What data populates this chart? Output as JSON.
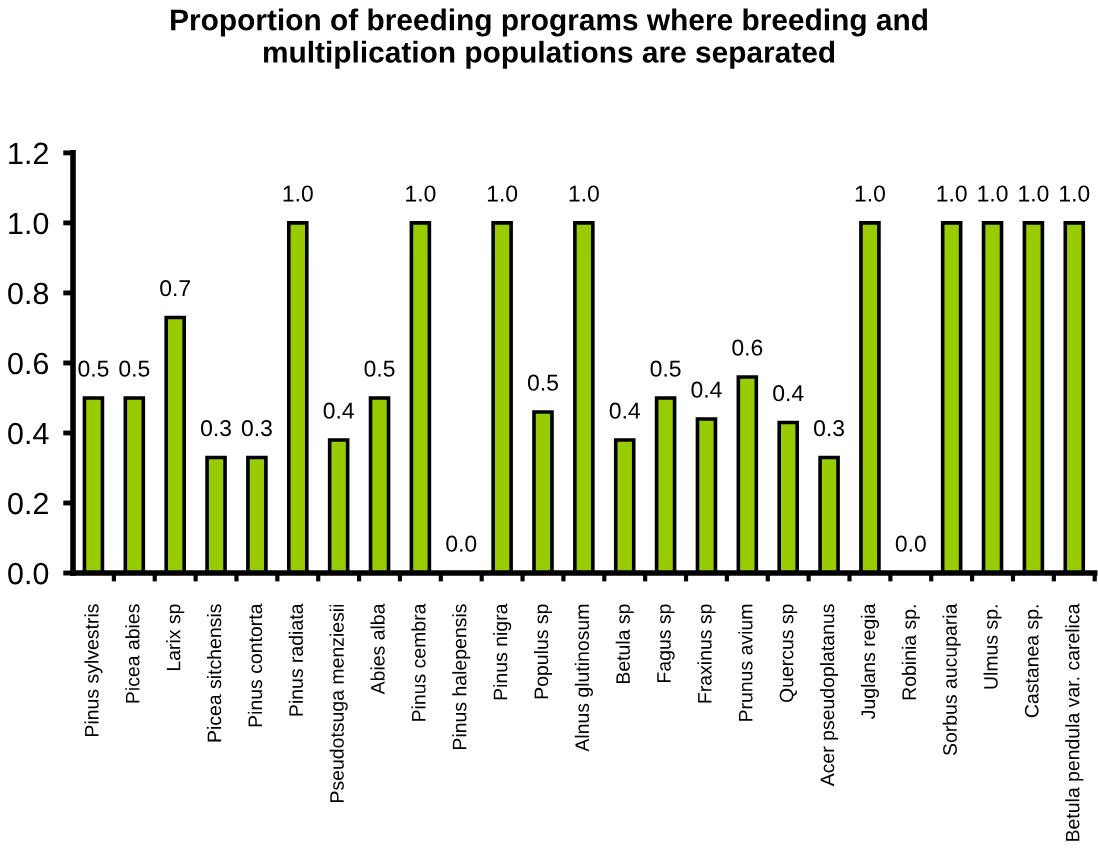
{
  "chart_data": {
    "type": "bar",
    "title": "Proportion of breeding programs where breeding and\nmultiplication populations are separated",
    "categories": [
      "Pinus sylvestris",
      "Picea abies",
      "Larix sp",
      "Picea sitchensis",
      "Pinus contorta",
      "Pinus radiata",
      "Pseudotsuga menziesii",
      "Abies alba",
      "Pinus cembra",
      "Pinus halepensis",
      "Pinus nigra",
      "Populus sp",
      "Alnus glutinosum",
      "Betula sp",
      "Fagus sp",
      "Fraxinus sp",
      "Prunus avium",
      "Quercus sp",
      "Acer pseudoplatanus",
      "Juglans regia",
      "Robinia sp.",
      "Sorbus aucuparia",
      "Ulmus sp.",
      "Castanea sp.",
      "Betula pendula var. carelica"
    ],
    "values": [
      0.5,
      0.5,
      0.73,
      0.33,
      0.33,
      1.0,
      0.38,
      0.5,
      1.0,
      0.0,
      1.0,
      0.46,
      1.0,
      0.38,
      0.5,
      0.44,
      0.56,
      0.43,
      0.33,
      1.0,
      0.0,
      1.0,
      1.0,
      1.0,
      1.0
    ],
    "value_labels": [
      "0.5",
      "0.5",
      "0.7",
      "0.3",
      "0.3",
      "1.0",
      "0.4",
      "0.5",
      "1.0",
      "0.0",
      "1.0",
      "0.5",
      "1.0",
      "0.4",
      "0.5",
      "0.4",
      "0.6",
      "0.4",
      "0.3",
      "1.0",
      "0.0",
      "1.0",
      "1.0",
      "1.0",
      "1.0"
    ],
    "color": "#99cc00",
    "ylim": [
      0,
      1.2
    ],
    "yticks": [
      {
        "value": 0,
        "label": "0.0"
      },
      {
        "value": 0.2,
        "label": "0.2"
      },
      {
        "value": 0.4,
        "label": "0.4"
      },
      {
        "value": 0.6,
        "label": "0.6"
      },
      {
        "value": 0.8,
        "label": "0.8"
      },
      {
        "value": 1.0,
        "label": "1.0"
      },
      {
        "value": 1.2,
        "label": "1.2"
      }
    ]
  }
}
